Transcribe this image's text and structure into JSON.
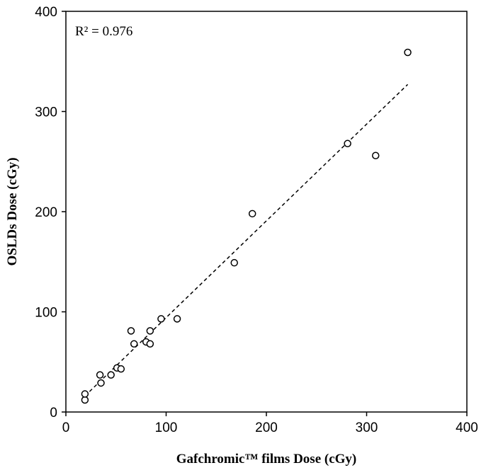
{
  "chart_data": {
    "type": "scatter",
    "xlabel": "Gafchromic™ films Dose (cGy)",
    "ylabel": "OSLDs Dose (cGy)",
    "xlim": [
      0,
      400
    ],
    "ylim": [
      0,
      400
    ],
    "xticks": [
      "0",
      "100",
      "200",
      "300",
      "400"
    ],
    "yticks": [
      "0",
      "100",
      "200",
      "300",
      "400"
    ],
    "grid": false,
    "legend": "none",
    "annotation": "R² = 0.976",
    "series": [
      {
        "marker": "open-circle",
        "points": [
          {
            "x": 19,
            "y": 12
          },
          {
            "x": 19,
            "y": 18
          },
          {
            "x": 34,
            "y": 37
          },
          {
            "x": 35,
            "y": 29
          },
          {
            "x": 45,
            "y": 37
          },
          {
            "x": 51,
            "y": 44
          },
          {
            "x": 55,
            "y": 43
          },
          {
            "x": 65,
            "y": 81
          },
          {
            "x": 68,
            "y": 68
          },
          {
            "x": 80,
            "y": 70
          },
          {
            "x": 84,
            "y": 68
          },
          {
            "x": 84,
            "y": 81
          },
          {
            "x": 95,
            "y": 93
          },
          {
            "x": 111,
            "y": 93
          },
          {
            "x": 168,
            "y": 149
          },
          {
            "x": 186,
            "y": 198
          },
          {
            "x": 281,
            "y": 268
          },
          {
            "x": 309,
            "y": 256
          },
          {
            "x": 341,
            "y": 359
          }
        ]
      }
    ],
    "trendline": {
      "style": "dashed",
      "from": [
        19,
        16
      ],
      "to": [
        341,
        327
      ]
    }
  }
}
